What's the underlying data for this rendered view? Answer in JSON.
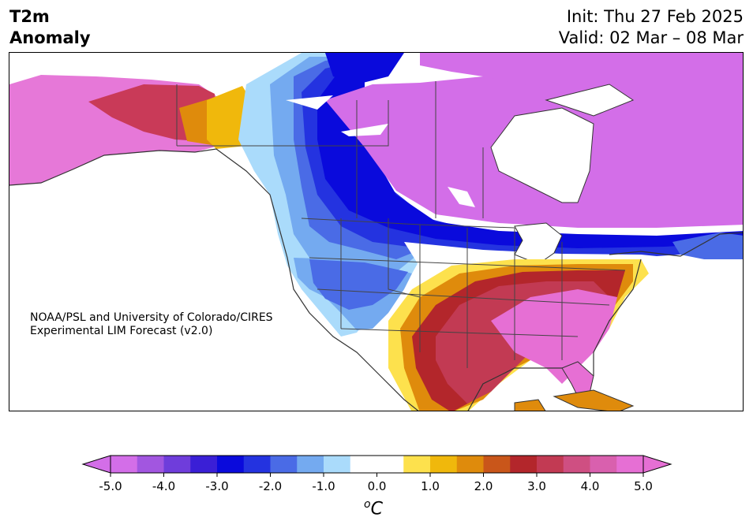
{
  "title": {
    "left_line1": "T2m",
    "left_line2": "Anomaly",
    "right_line1": "Init: Thu 27 Feb 2025",
    "right_line2": "Valid: 02 Mar – 08 Mar"
  },
  "credit": {
    "line1": "NOAA/PSL and University of Colorado/CIRES",
    "line2": "Experimental LIM Forecast (v2.0)"
  },
  "colorbar": {
    "min": -5.0,
    "max": 5.0,
    "ticks": [
      "-5.0",
      "-4.0",
      "-3.0",
      "-2.0",
      "-1.0",
      "0.0",
      "1.0",
      "2.0",
      "3.0",
      "4.0",
      "5.0"
    ],
    "units_main": "o",
    "units_sub": "C",
    "colors": [
      "#d36ee8",
      "#a256e0",
      "#6f3ddb",
      "#3a1fd6",
      "#0a0adc",
      "#2433e0",
      "#4a6be6",
      "#74aaf0",
      "#aadbfb",
      "#ffffff",
      "#ffffff",
      "#fde14d",
      "#f0b80c",
      "#df8b0c",
      "#c9561a",
      "#b3262b",
      "#c23a53",
      "#cf4f82",
      "#d960ae",
      "#e66fd4"
    ]
  }
}
